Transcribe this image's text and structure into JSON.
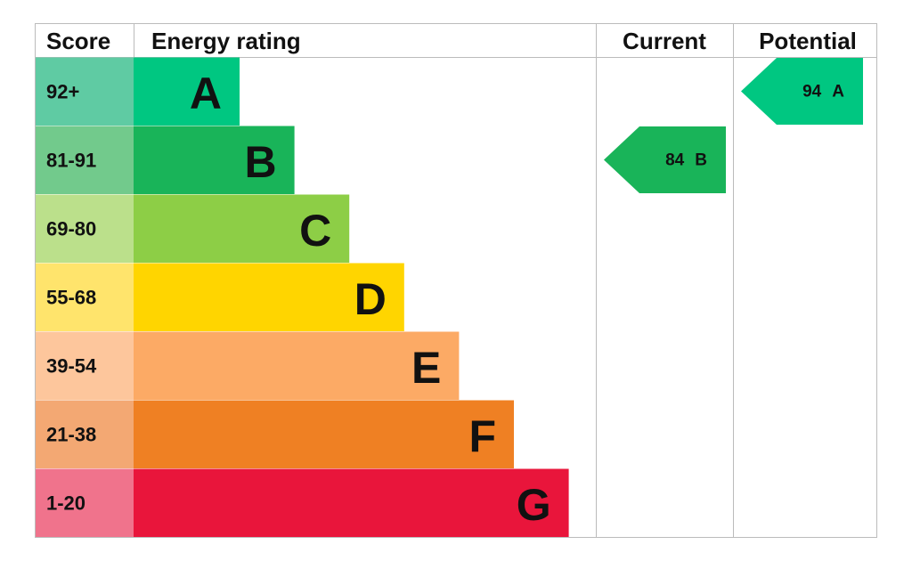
{
  "header": {
    "score": "Score",
    "rating": "Energy rating",
    "current": "Current",
    "potential": "Potential"
  },
  "bands": [
    {
      "score": "92+",
      "letter": "A",
      "color": "#00c781",
      "score_color": "#5fcba3"
    },
    {
      "score": "81-91",
      "letter": "B",
      "color": "#19b459",
      "score_color": "#72ca8c"
    },
    {
      "score": "69-80",
      "letter": "C",
      "color": "#8dce46",
      "score_color": "#bbe08b"
    },
    {
      "score": "55-68",
      "letter": "D",
      "color": "#ffd500",
      "score_color": "#ffe46c"
    },
    {
      "score": "39-54",
      "letter": "E",
      "color": "#fcaa65",
      "score_color": "#fdc69c"
    },
    {
      "score": "21-38",
      "letter": "F",
      "color": "#ef8023",
      "score_color": "#f3a873"
    },
    {
      "score": "1-20",
      "letter": "G",
      "color": "#e9153b",
      "score_color": "#f0738c"
    }
  ],
  "current": {
    "value": 84,
    "letter": "B"
  },
  "potential": {
    "value": 94,
    "letter": "A"
  }
}
